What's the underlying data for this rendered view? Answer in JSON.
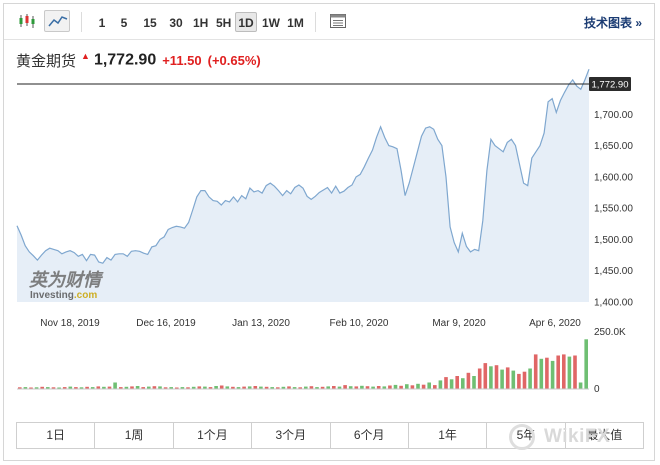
{
  "toolbar": {
    "icons": [
      "candlestick-icon",
      "line-chart-icon"
    ],
    "intervals": [
      "1",
      "5",
      "15",
      "30",
      "1H",
      "5H",
      "1D",
      "1W",
      "1M"
    ],
    "active_interval": "1D",
    "table_icon": "table-icon",
    "tech_chart_label": "技术图表 »"
  },
  "header": {
    "instrument": "黄金期货",
    "price": "1,772.90",
    "change": "+11.50",
    "change_pct": "(+0.65%)"
  },
  "watermark": {
    "logo_text": "英为财情",
    "logo_subtext_a": "Investing",
    "logo_subtext_b": ".com",
    "corner_text": "WikiFX"
  },
  "ranges": [
    "1日",
    "1周",
    "1个月",
    "3个月",
    "6个月",
    "1年",
    "5年",
    "最大值"
  ],
  "chart_data": {
    "type": "area",
    "title": "",
    "x_tick_labels": [
      "Nov 18, 2019",
      "Dec 16, 2019",
      "Jan 13, 2020",
      "Feb 10, 2020",
      "Mar 9, 2020",
      "Apr 6, 2020"
    ],
    "y_tick_labels": [
      "1,700.00",
      "1,650.00",
      "1,600.00",
      "1,550.00",
      "1,500.00",
      "1,450.00",
      "1,400.00"
    ],
    "ylim": [
      1400,
      1750
    ],
    "last_price_label": "1,772.90",
    "last_price": 1772.9,
    "colors": {
      "line": "#7fa7cf",
      "fill": "#e6eef7",
      "up": "#e06666",
      "down": "#6fbf73",
      "price_line": "#222222",
      "tag": "#2b2b2b"
    },
    "price_series": {
      "name": "",
      "values": [
        1522,
        1507,
        1490,
        1480,
        1474,
        1467,
        1475,
        1482,
        1486,
        1484,
        1482,
        1477,
        1480,
        1482,
        1479,
        1473,
        1476,
        1466,
        1476,
        1475,
        1464,
        1462,
        1471,
        1467,
        1476,
        1477,
        1477,
        1473,
        1481,
        1482,
        1481,
        1478,
        1476,
        1488,
        1490,
        1500,
        1504,
        1516,
        1519,
        1521,
        1520,
        1518,
        1527,
        1547,
        1568,
        1578,
        1578,
        1568,
        1562,
        1561,
        1555,
        1562,
        1560,
        1568,
        1560,
        1570,
        1565,
        1582,
        1576,
        1578,
        1574,
        1586,
        1590,
        1585,
        1578,
        1570,
        1578,
        1573,
        1583,
        1587,
        1582,
        1569,
        1564,
        1569,
        1575,
        1579,
        1583,
        1574,
        1585,
        1574,
        1577,
        1583,
        1587,
        1600,
        1604,
        1616,
        1630,
        1643,
        1663,
        1680,
        1663,
        1650,
        1648,
        1645,
        1610,
        1570,
        1590,
        1615,
        1640,
        1665,
        1678,
        1680,
        1676,
        1660,
        1650,
        1600,
        1520,
        1495,
        1480,
        1510,
        1489,
        1480,
        1484,
        1482,
        1530,
        1610,
        1660,
        1650,
        1645,
        1640,
        1655,
        1660,
        1650,
        1620,
        1590,
        1586,
        1630,
        1640,
        1650,
        1670,
        1720,
        1725,
        1703,
        1722,
        1735,
        1747,
        1755,
        1745,
        1740,
        1755,
        1772
      ]
    },
    "volume_series": {
      "name": "",
      "y_tick_labels": [
        "250.0K",
        "0"
      ],
      "ylim": [
        0,
        250000
      ],
      "bars": [
        [
          "d",
          8000
        ],
        [
          "u",
          9000
        ],
        [
          "d",
          7000
        ],
        [
          "u",
          8000
        ],
        [
          "d",
          10000
        ],
        [
          "u",
          9000
        ],
        [
          "d",
          8000
        ],
        [
          "u",
          7000
        ],
        [
          "d",
          9000
        ],
        [
          "u",
          11000
        ],
        [
          "d",
          9000
        ],
        [
          "u",
          8000
        ],
        [
          "d",
          10000
        ],
        [
          "u",
          9000
        ],
        [
          "d",
          12000
        ],
        [
          "u",
          10000
        ],
        [
          "d",
          11000
        ],
        [
          "u",
          30000
        ],
        [
          "d",
          9000
        ],
        [
          "u",
          10000
        ],
        [
          "d",
          12000
        ],
        [
          "u",
          14000
        ],
        [
          "d",
          9000
        ],
        [
          "u",
          11000
        ],
        [
          "d",
          13000
        ],
        [
          "u",
          12000
        ],
        [
          "d",
          8000
        ],
        [
          "u",
          9000
        ],
        [
          "d",
          7000
        ],
        [
          "u",
          9000
        ],
        [
          "d",
          8000
        ],
        [
          "u",
          10000
        ],
        [
          "d",
          12000
        ],
        [
          "u",
          11000
        ],
        [
          "d",
          9000
        ],
        [
          "u",
          14000
        ],
        [
          "d",
          16000
        ],
        [
          "u",
          12000
        ],
        [
          "d",
          10000
        ],
        [
          "u",
          9000
        ],
        [
          "d",
          11000
        ],
        [
          "u",
          12000
        ],
        [
          "d",
          14000
        ],
        [
          "u",
          11000
        ],
        [
          "d",
          10000
        ],
        [
          "u",
          9000
        ],
        [
          "d",
          8000
        ],
        [
          "u",
          10000
        ],
        [
          "d",
          12000
        ],
        [
          "u",
          9000
        ],
        [
          "d",
          8000
        ],
        [
          "u",
          11000
        ],
        [
          "d",
          13000
        ],
        [
          "u",
          9000
        ],
        [
          "d",
          10000
        ],
        [
          "u",
          12000
        ],
        [
          "d",
          14000
        ],
        [
          "u",
          11000
        ],
        [
          "d",
          18000
        ],
        [
          "u",
          13000
        ],
        [
          "d",
          12000
        ],
        [
          "u",
          15000
        ],
        [
          "d",
          13000
        ],
        [
          "u",
          11000
        ],
        [
          "d",
          14000
        ],
        [
          "u",
          12000
        ],
        [
          "d",
          16000
        ],
        [
          "u",
          19000
        ],
        [
          "d",
          15000
        ],
        [
          "u",
          22000
        ],
        [
          "d",
          17000
        ],
        [
          "u",
          24000
        ],
        [
          "d",
          20000
        ],
        [
          "u",
          30000
        ],
        [
          "d",
          18000
        ],
        [
          "u",
          40000
        ],
        [
          "d",
          55000
        ],
        [
          "u",
          45000
        ],
        [
          "d",
          60000
        ],
        [
          "u",
          50000
        ],
        [
          "d",
          75000
        ],
        [
          "u",
          60000
        ],
        [
          "d",
          95000
        ],
        [
          "d",
          120000
        ],
        [
          "u",
          105000
        ],
        [
          "d",
          110000
        ],
        [
          "u",
          90000
        ],
        [
          "d",
          100000
        ],
        [
          "u",
          85000
        ],
        [
          "d",
          70000
        ],
        [
          "d",
          80000
        ],
        [
          "u",
          95000
        ],
        [
          "d",
          160000
        ],
        [
          "u",
          140000
        ],
        [
          "d",
          145000
        ],
        [
          "u",
          130000
        ],
        [
          "d",
          155000
        ],
        [
          "d",
          160000
        ],
        [
          "u",
          150000
        ],
        [
          "d",
          155000
        ],
        [
          "u",
          30000
        ],
        [
          "u",
          230000
        ]
      ]
    }
  }
}
